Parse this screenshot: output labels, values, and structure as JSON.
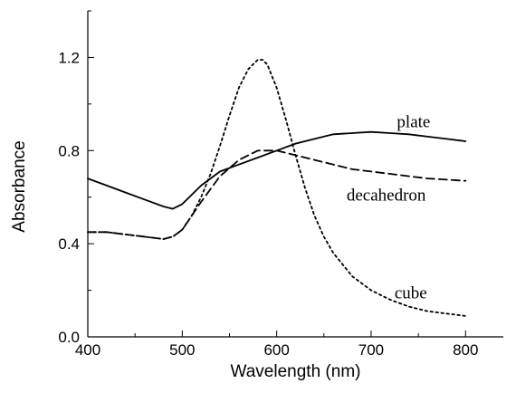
{
  "chart_data": {
    "type": "line",
    "xlabel": "Wavelength (nm)",
    "ylabel": "Absorbance",
    "xlim": [
      400,
      840
    ],
    "ylim": [
      0.0,
      1.4
    ],
    "x_ticks": [
      400,
      500,
      600,
      700,
      800
    ],
    "x_tick_labels": [
      "400",
      "500",
      "600",
      "700",
      "800"
    ],
    "y_ticks": [
      0.0,
      0.4,
      0.8,
      1.2
    ],
    "y_tick_labels": [
      "0.0",
      "0.4",
      "0.8",
      "1.2"
    ],
    "grid": false,
    "legend": "none",
    "series": [
      {
        "name": "plate",
        "line_style": "solid",
        "x": [
          400,
          420,
          440,
          460,
          480,
          490,
          500,
          520,
          540,
          560,
          580,
          600,
          620,
          640,
          660,
          680,
          700,
          720,
          740,
          760,
          780,
          800
        ],
        "y": [
          0.68,
          0.65,
          0.62,
          0.59,
          0.56,
          0.55,
          0.57,
          0.65,
          0.71,
          0.74,
          0.77,
          0.8,
          0.83,
          0.85,
          0.87,
          0.875,
          0.88,
          0.875,
          0.87,
          0.86,
          0.85,
          0.84
        ]
      },
      {
        "name": "decahedron",
        "line_style": "dashed",
        "x": [
          400,
          420,
          440,
          460,
          480,
          490,
          500,
          520,
          540,
          560,
          580,
          600,
          620,
          640,
          660,
          680,
          700,
          720,
          740,
          760,
          780,
          800
        ],
        "y": [
          0.45,
          0.45,
          0.44,
          0.43,
          0.42,
          0.43,
          0.46,
          0.58,
          0.69,
          0.76,
          0.8,
          0.8,
          0.78,
          0.76,
          0.74,
          0.72,
          0.71,
          0.7,
          0.69,
          0.68,
          0.675,
          0.67
        ]
      },
      {
        "name": "cube",
        "line_style": "dotted",
        "x": [
          400,
          420,
          440,
          460,
          480,
          490,
          500,
          510,
          520,
          530,
          540,
          550,
          560,
          570,
          580,
          585,
          590,
          600,
          610,
          620,
          630,
          640,
          650,
          660,
          680,
          700,
          720,
          740,
          760,
          780,
          800
        ],
        "y": [
          0.45,
          0.45,
          0.44,
          0.43,
          0.42,
          0.43,
          0.46,
          0.52,
          0.6,
          0.7,
          0.82,
          0.95,
          1.07,
          1.15,
          1.19,
          1.19,
          1.17,
          1.07,
          0.93,
          0.78,
          0.64,
          0.52,
          0.43,
          0.36,
          0.26,
          0.2,
          0.16,
          0.13,
          0.11,
          0.1,
          0.09
        ]
      }
    ],
    "annotations": [
      {
        "text": "plate",
        "x": 745,
        "y": 0.9
      },
      {
        "text": "decahedron",
        "x": 716,
        "y": 0.585
      },
      {
        "text": "cube",
        "x": 742,
        "y": 0.165
      }
    ]
  }
}
